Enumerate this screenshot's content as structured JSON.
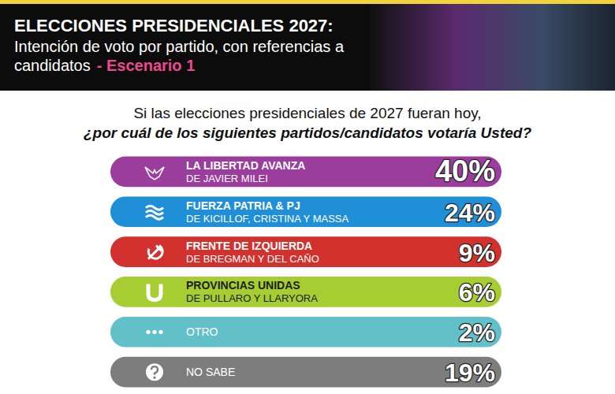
{
  "chart_data": {
    "type": "bar",
    "title": "ELECCIONES PRESIDENCIALES 2027:",
    "subtitle": "Intención de voto por partido, con referencias a candidatos",
    "subtitle_tag": "- Escenario 1",
    "question": [
      "Si las elecciones presidenciales de 2027 fueran hoy,",
      "¿por cuál de los siguientes partidos/candidatos votaría Usted?"
    ],
    "categories": [
      "LA LIBERTAD AVANZA",
      "FUERZA PATRIA & PJ",
      "FRENTE DE IZQUIERDA",
      "PROVINCIAS UNIDAS",
      "OTRO",
      "NO SABE"
    ],
    "category_details": [
      "DE JAVIER MILEI",
      "DE KICILLOF, CRISTINA Y MASSA",
      "DE BREGMAN Y DEL CAÑO",
      "DE PULLARO Y LLARYORA",
      null,
      null
    ],
    "values": [
      40,
      24,
      9,
      6,
      2,
      19
    ],
    "value_labels": [
      "40%",
      "24%",
      "9%",
      "6%",
      "2%",
      "19%"
    ],
    "colors": [
      "#9a3d9c",
      "#1f8fd8",
      "#d2312d",
      "#a6cd32",
      "#62c0c8",
      "#7d7d7d"
    ],
    "orientation": "horizontal",
    "data_labels": true,
    "tick_labels": false
  }
}
